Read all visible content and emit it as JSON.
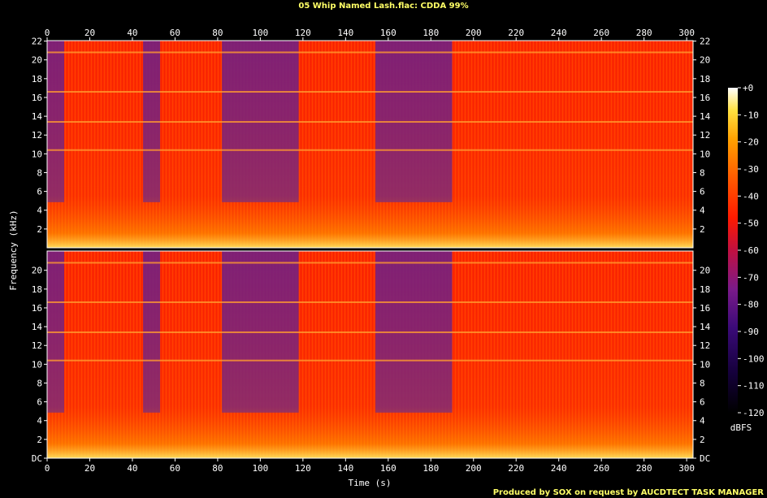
{
  "chart_data": {
    "type": "heatmap",
    "title": "05 Whip Named Lash.flac: CDDA 99%",
    "xlabel": "Time (s)",
    "ylabel": "Frequency (kHz)",
    "credit": "Produced by SOX on request by AUCDTECT TASK MANAGER",
    "xlim": [
      0,
      303
    ],
    "ylim": [
      0,
      22.05
    ],
    "x_ticks": [
      "0",
      "20",
      "40",
      "60",
      "80",
      "100",
      "120",
      "140",
      "160",
      "180",
      "200",
      "220",
      "240",
      "260",
      "280",
      "300"
    ],
    "x_tick_values": [
      0,
      20,
      40,
      60,
      80,
      100,
      120,
      140,
      160,
      180,
      200,
      220,
      240,
      260,
      280,
      300
    ],
    "y_ticks_top_channel": [
      "2",
      "4",
      "6",
      "8",
      "10",
      "12",
      "14",
      "16",
      "18",
      "20",
      "22"
    ],
    "y_ticks_bottom_channel": [
      "DC",
      "2",
      "4",
      "6",
      "8",
      "10",
      "12",
      "14",
      "16",
      "18",
      "20"
    ],
    "y_tick_values": [
      0,
      2,
      4,
      6,
      8,
      10,
      12,
      14,
      16,
      18,
      20,
      22
    ],
    "channels": 2,
    "colorbar": {
      "label": "dBFS",
      "range": [
        -120,
        0
      ],
      "ticks": [
        "+0",
        "-10",
        "-20",
        "-30",
        "-40",
        "-50",
        "-60",
        "-70",
        "-80",
        "-90",
        "-100",
        "-110",
        "-120"
      ],
      "tick_values": [
        0,
        -10,
        -20,
        -30,
        -40,
        -50,
        -60,
        -70,
        -80,
        -90,
        -100,
        -110,
        -120
      ]
    },
    "quiet_segments_s": [
      [
        0,
        8
      ],
      [
        45,
        53
      ],
      [
        82,
        118
      ],
      [
        154,
        190
      ]
    ],
    "tonal_lines_khz": [
      20.8,
      16.6,
      13.4,
      10.4
    ],
    "grid": false
  },
  "colors": {
    "background": "#000000",
    "text": "#ffffff",
    "title": "#ffff66",
    "loud": "#ff3300",
    "quiet": "#6a1f8a"
  }
}
